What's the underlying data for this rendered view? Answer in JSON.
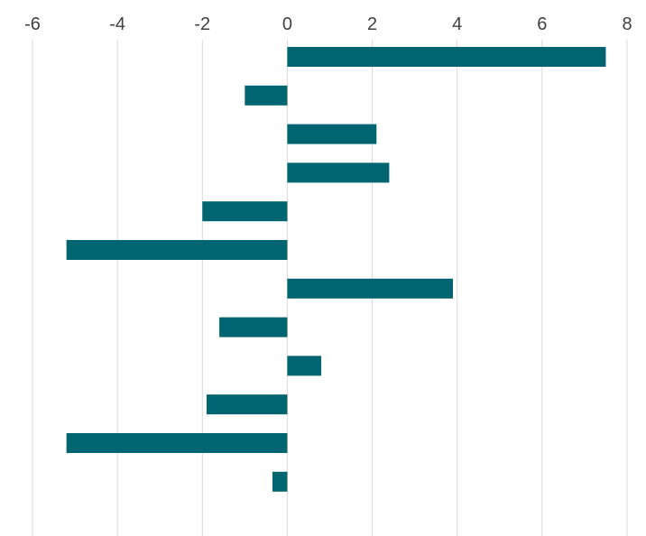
{
  "chart_data": {
    "type": "bar",
    "orientation": "horizontal",
    "title": "",
    "xlabel": "",
    "ylabel": "",
    "xlim": [
      -6,
      8
    ],
    "ticks": [
      -6,
      -4,
      -2,
      0,
      2,
      4,
      6,
      8
    ],
    "tick_labels": [
      "-6",
      "-4",
      "-2",
      "0",
      "2",
      "4",
      "6",
      "8"
    ],
    "axis_position": "top",
    "grid": true,
    "legend": "none",
    "bar_color": "#006570",
    "grid_color": "#d9d9d9",
    "values": [
      7.5,
      -1.0,
      2.1,
      2.4,
      -2.0,
      -5.2,
      3.9,
      -1.6,
      0.8,
      -1.9,
      -5.2,
      -0.35
    ]
  }
}
